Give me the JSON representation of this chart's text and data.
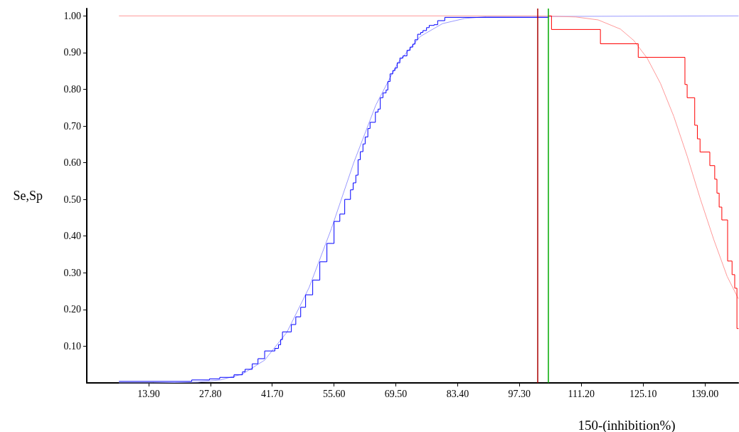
{
  "chart_data": {
    "type": "line",
    "xlabel": "150-(inhibition%)",
    "ylabel": "Se,Sp",
    "xlim": [
      0,
      146.5
    ],
    "ylim": [
      0,
      1.02
    ],
    "xticks": [
      {
        "value": 13.9,
        "label": "13.90"
      },
      {
        "value": 27.8,
        "label": "27.80"
      },
      {
        "value": 41.7,
        "label": "41.70"
      },
      {
        "value": 55.6,
        "label": "55.60"
      },
      {
        "value": 69.5,
        "label": "69.50"
      },
      {
        "value": 83.4,
        "label": "83.40"
      },
      {
        "value": 97.3,
        "label": "97.30"
      },
      {
        "value": 111.2,
        "label": "111.20"
      },
      {
        "value": 125.1,
        "label": "125.10"
      },
      {
        "value": 139.0,
        "label": "139.00"
      }
    ],
    "yticks": [
      {
        "value": 0.1,
        "label": "0.10"
      },
      {
        "value": 0.2,
        "label": "0.20"
      },
      {
        "value": 0.3,
        "label": "0.30"
      },
      {
        "value": 0.4,
        "label": "0.40"
      },
      {
        "value": 0.5,
        "label": "0.50"
      },
      {
        "value": 0.6,
        "label": "0.60"
      },
      {
        "value": 0.7,
        "label": "0.70"
      },
      {
        "value": 0.8,
        "label": "0.80"
      },
      {
        "value": 0.9,
        "label": "0.90"
      },
      {
        "value": 1.0,
        "label": "1.00"
      }
    ],
    "grid": false,
    "marker": "none",
    "line_style": "solid",
    "ref_lines": [
      {
        "axis": "x",
        "value": 101.3,
        "color": "#aa0000"
      },
      {
        "axis": "x",
        "value": 103.8,
        "color": "#00aa00"
      }
    ],
    "series": [
      {
        "type": "line",
        "color": "#9999ff",
        "x": [
          7.3,
          15,
          20,
          25,
          30,
          35,
          40,
          45,
          50,
          55,
          60,
          65,
          70,
          75,
          80,
          85,
          90,
          146.5
        ],
        "values": [
          0,
          0,
          0.001,
          0.002,
          0.008,
          0.024,
          0.062,
          0.138,
          0.26,
          0.42,
          0.599,
          0.757,
          0.873,
          0.944,
          0.979,
          0.993,
          0.998,
          1.0
        ]
      },
      {
        "type": "line",
        "color": "#ff9999",
        "x": [
          7.3,
          100,
          105,
          110,
          115,
          120,
          123,
          126,
          129,
          132,
          135,
          138,
          141,
          144,
          146.5
        ],
        "values": [
          1.0,
          1.0,
          0.999,
          0.997,
          0.989,
          0.964,
          0.933,
          0.885,
          0.816,
          0.726,
          0.618,
          0.5,
          0.39,
          0.29,
          0.23
        ]
      },
      {
        "type": "step",
        "color": "#0000ff",
        "x": [
          7.3,
          23.6,
          27.6,
          29.9,
          33.1,
          35,
          35.6,
          37.2,
          38.5,
          40,
          42.3,
          43.1,
          43.6,
          44,
          46,
          47,
          48.1,
          49.2,
          50.8,
          52.4,
          54,
          55.6,
          56.9,
          58,
          59.3,
          59.9,
          60.5,
          61,
          61.5,
          62.1,
          62.6,
          63.2,
          63.7,
          64.9,
          65.5,
          66,
          66.6,
          67.3,
          67.7,
          68.2,
          68.8,
          69.3,
          69.8,
          70.4,
          71.1,
          72,
          72.7,
          73.3,
          73.8,
          74.4,
          75.1,
          75.6,
          76.4,
          77,
          78.1,
          78.9,
          80.5,
          103.8
        ],
        "values": [
          0.004,
          0.008,
          0.011,
          0.015,
          0.022,
          0.03,
          0.037,
          0.052,
          0.066,
          0.087,
          0.094,
          0.104,
          0.118,
          0.139,
          0.159,
          0.18,
          0.206,
          0.24,
          0.28,
          0.33,
          0.38,
          0.44,
          0.46,
          0.5,
          0.526,
          0.545,
          0.566,
          0.608,
          0.63,
          0.651,
          0.67,
          0.693,
          0.71,
          0.738,
          0.746,
          0.777,
          0.79,
          0.798,
          0.821,
          0.842,
          0.851,
          0.858,
          0.872,
          0.885,
          0.891,
          0.906,
          0.915,
          0.923,
          0.935,
          0.95,
          0.955,
          0.96,
          0.968,
          0.974,
          0.976,
          0.987,
          0.996,
          0.996
        ]
      },
      {
        "type": "step",
        "color": "#ff0000",
        "x": [
          103.8,
          104.5,
          115.5,
          124,
          134.5,
          135,
          136.7,
          137.3,
          137.9,
          140.1,
          141.2,
          141.7,
          142.2,
          142.8,
          144.1,
          145.1,
          145.7,
          146.2,
          146.5
        ],
        "values": [
          1.0,
          0.963,
          0.924,
          0.887,
          0.813,
          0.777,
          0.702,
          0.665,
          0.629,
          0.592,
          0.555,
          0.517,
          0.479,
          0.444,
          0.332,
          0.295,
          0.258,
          0.148,
          0.148
        ]
      }
    ]
  }
}
